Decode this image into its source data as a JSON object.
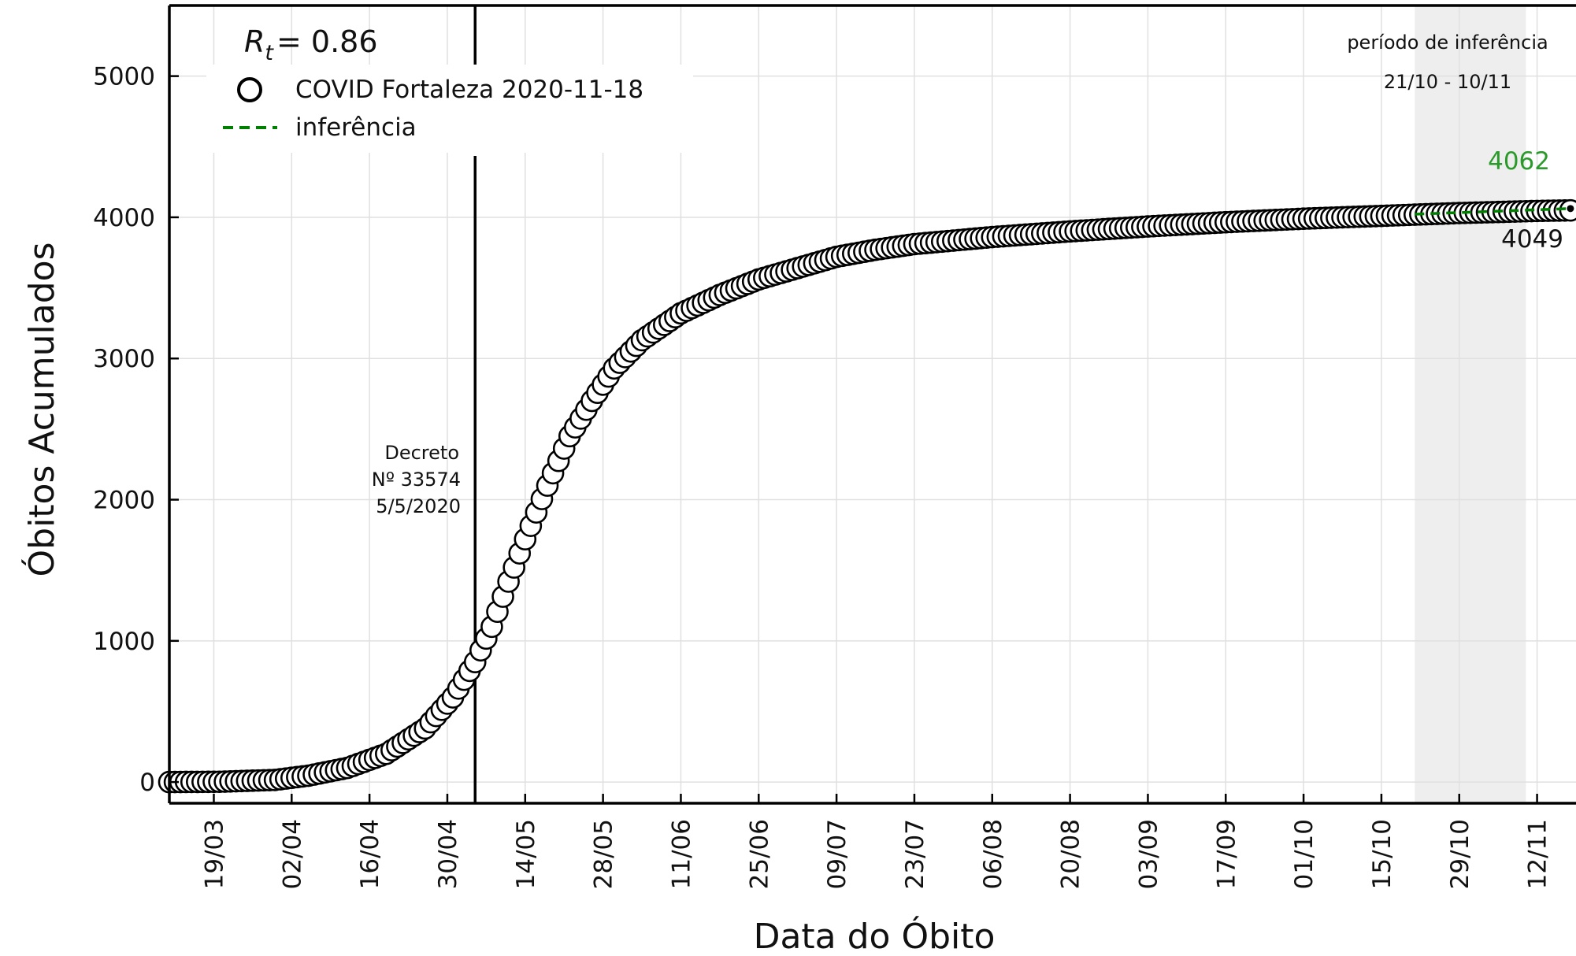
{
  "chart_data": {
    "type": "scatter",
    "xlabel": "Data do Óbito",
    "ylabel": "Óbitos Acumulados",
    "ylim": [
      -150,
      5500
    ],
    "xlim": [
      "2020-03-11",
      "2020-11-19"
    ],
    "grid": true,
    "legend_placement": "top-left",
    "x_ticks": [
      "19/03",
      "02/04",
      "16/04",
      "30/04",
      "14/05",
      "28/05",
      "11/06",
      "25/06",
      "09/07",
      "23/07",
      "06/08",
      "20/08",
      "03/09",
      "17/09",
      "01/10",
      "15/10",
      "29/10",
      "12/11"
    ],
    "x_tick_dates": [
      "2020-03-19",
      "2020-04-02",
      "2020-04-16",
      "2020-04-30",
      "2020-05-14",
      "2020-05-28",
      "2020-06-11",
      "2020-06-25",
      "2020-07-09",
      "2020-07-23",
      "2020-08-06",
      "2020-08-20",
      "2020-09-03",
      "2020-09-17",
      "2020-10-01",
      "2020-10-15",
      "2020-10-29",
      "2020-11-12"
    ],
    "y_ticks": [
      0,
      1000,
      2000,
      3000,
      4000,
      5000
    ],
    "y_tick_labels": [
      "0",
      "1000",
      "2000",
      "3000",
      "4000",
      "5000"
    ],
    "rt_label": "R",
    "rt_sub": "t",
    "rt_value": "= 0.86",
    "legend": [
      {
        "label": "COVID Fortaleza 2020-11-18",
        "marker": "circle-open"
      },
      {
        "label": "inferência",
        "marker": "dashed-line",
        "color": "#008000"
      }
    ],
    "series": [
      {
        "name": "COVID Fortaleza 2020-11-18",
        "marker": "circle-open",
        "color": "#000000",
        "key_points": [
          [
            "2020-03-11",
            0
          ],
          [
            "2020-03-20",
            2
          ],
          [
            "2020-03-30",
            15
          ],
          [
            "2020-04-05",
            45
          ],
          [
            "2020-04-12",
            100
          ],
          [
            "2020-04-19",
            200
          ],
          [
            "2020-04-26",
            380
          ],
          [
            "2020-05-01",
            600
          ],
          [
            "2020-05-05",
            850
          ],
          [
            "2020-05-08",
            1100
          ],
          [
            "2020-05-11",
            1420
          ],
          [
            "2020-05-14",
            1720
          ],
          [
            "2020-05-18",
            2100
          ],
          [
            "2020-05-22",
            2450
          ],
          [
            "2020-05-26",
            2700
          ],
          [
            "2020-05-30",
            2930
          ],
          [
            "2020-06-04",
            3130
          ],
          [
            "2020-06-11",
            3320
          ],
          [
            "2020-06-18",
            3450
          ],
          [
            "2020-06-25",
            3560
          ],
          [
            "2020-07-02",
            3640
          ],
          [
            "2020-07-09",
            3720
          ],
          [
            "2020-07-16",
            3770
          ],
          [
            "2020-07-23",
            3810
          ],
          [
            "2020-08-06",
            3860
          ],
          [
            "2020-08-20",
            3900
          ],
          [
            "2020-09-03",
            3935
          ],
          [
            "2020-09-17",
            3965
          ],
          [
            "2020-10-01",
            3990
          ],
          [
            "2020-10-15",
            4010
          ],
          [
            "2020-10-29",
            4030
          ],
          [
            "2020-11-12",
            4045
          ],
          [
            "2020-11-18",
            4049
          ]
        ]
      },
      {
        "name": "inferência",
        "line_style": "dashed",
        "color": "#008000",
        "points": [
          [
            "2020-10-21",
            4022
          ],
          [
            "2020-11-18",
            4062
          ]
        ]
      }
    ],
    "annotations": {
      "decree_lines": [
        "Decreto",
        "Nº 33574",
        "5/5/2020"
      ],
      "decree_date": "2020-05-05",
      "inference_title": "período de inferência",
      "inference_range": "21/10 - 10/11",
      "inference_start": "2020-10-21",
      "inference_end": "2020-11-10",
      "inference_band_color": "#eeeeee",
      "predicted_value": "4062",
      "predicted_color": "#2a9a2a",
      "observed_value": "4049"
    }
  }
}
